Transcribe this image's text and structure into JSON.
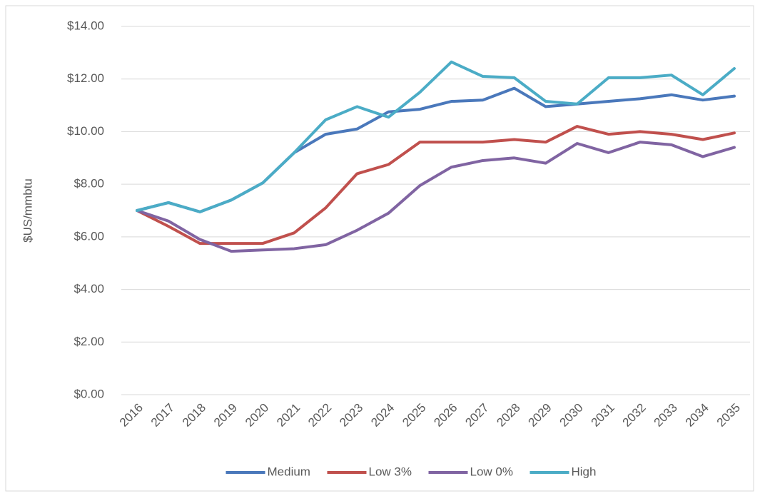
{
  "chart_data": {
    "type": "line",
    "y_label": "$US/mmbtu",
    "categories": [
      "2016",
      "2017",
      "2018",
      "2019",
      "2020",
      "2021",
      "2022",
      "2023",
      "2024",
      "2025",
      "2026",
      "2027",
      "2028",
      "2029",
      "2030",
      "2031",
      "2032",
      "2033",
      "2034",
      "2035"
    ],
    "series": [
      {
        "name": "Medium",
        "color": "#4a78bb",
        "values": [
          7.0,
          7.3,
          6.95,
          7.4,
          8.05,
          9.2,
          9.9,
          10.1,
          10.75,
          10.85,
          11.15,
          11.2,
          11.65,
          10.95,
          11.05,
          11.15,
          11.25,
          11.4,
          11.2,
          11.35
        ]
      },
      {
        "name": "Low 3%",
        "color": "#c0504d",
        "values": [
          7.0,
          6.4,
          5.75,
          5.75,
          5.75,
          6.15,
          7.1,
          8.4,
          8.75,
          9.6,
          9.6,
          9.6,
          9.7,
          9.6,
          10.2,
          9.9,
          10.0,
          9.9,
          9.7,
          9.95
        ]
      },
      {
        "name": "Low 0%",
        "color": "#8064a2",
        "values": [
          7.0,
          6.6,
          5.9,
          5.45,
          5.5,
          5.55,
          5.7,
          6.25,
          6.9,
          7.95,
          8.65,
          8.9,
          9.0,
          8.8,
          9.55,
          9.2,
          9.6,
          9.5,
          9.05,
          9.4
        ]
      },
      {
        "name": "High",
        "color": "#4bacc6",
        "values": [
          7.0,
          7.3,
          6.95,
          7.4,
          8.05,
          9.2,
          10.45,
          10.95,
          10.55,
          11.5,
          12.65,
          12.1,
          12.05,
          11.15,
          11.05,
          12.05,
          12.05,
          12.15,
          11.4,
          12.4
        ]
      }
    ],
    "ylim": [
      0,
      14
    ],
    "yticks": [
      {
        "value": 0,
        "label": "$0.00"
      },
      {
        "value": 2,
        "label": "$2.00"
      },
      {
        "value": 4,
        "label": "$4.00"
      },
      {
        "value": 6,
        "label": "$6.00"
      },
      {
        "value": 8,
        "label": "$8.00"
      },
      {
        "value": 10,
        "label": "$10.00"
      },
      {
        "value": 12,
        "label": "$12.00"
      },
      {
        "value": 14,
        "label": "$14.00"
      }
    ],
    "grid": true,
    "legend": "bottom"
  }
}
